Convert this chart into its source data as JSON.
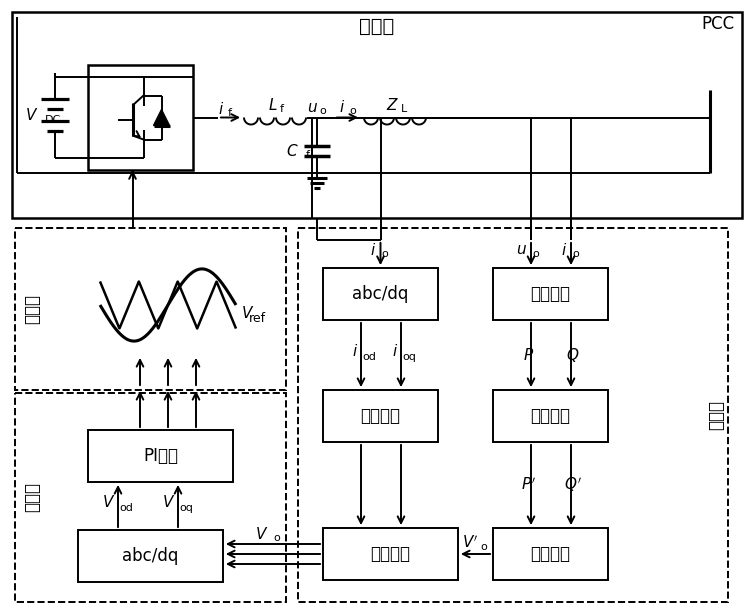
{
  "title": "主电路",
  "pcc": "PCC",
  "tiao": "调制层",
  "kong": "控制层",
  "gong": "功能层",
  "pi_block": "PI控制",
  "abc_dq": "abc/dq",
  "xu_ni": "虚拟阻抗",
  "gong_lv_ji_suan": "功率计算",
  "gong_lv_jie_ou": "功率解耦",
  "xia_chui": "下垂控制",
  "can_kao": "参考电压"
}
